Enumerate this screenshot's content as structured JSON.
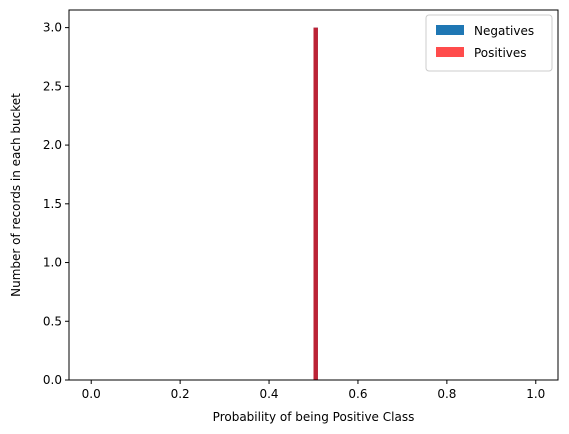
{
  "chart_data": {
    "type": "bar",
    "xlabel": "Probability of being Positive Class",
    "ylabel": "Number of records in each bucket",
    "xlim": [
      -0.05,
      1.05
    ],
    "ylim": [
      0,
      3.15
    ],
    "xticks": [
      0.0,
      0.2,
      0.4,
      0.6,
      0.8,
      1.0
    ],
    "xtick_labels": [
      "0.0",
      "0.2",
      "0.4",
      "0.6",
      "0.8",
      "1.0"
    ],
    "yticks": [
      0.0,
      0.5,
      1.0,
      1.5,
      2.0,
      2.5,
      3.0
    ],
    "ytick_labels": [
      "0.0",
      "0.5",
      "1.0",
      "1.5",
      "2.0",
      "2.5",
      "3.0"
    ],
    "grid": false,
    "legend_position": "top-right",
    "series": [
      {
        "name": "Negatives",
        "color": "#1f77b4",
        "opacity": 1.0,
        "bins": [
          {
            "x0": 0.5,
            "x1": 0.51,
            "count": 3
          }
        ]
      },
      {
        "name": "Positives",
        "color": "#ff0000",
        "opacity": 0.7,
        "bins": [
          {
            "x0": 0.5,
            "x1": 0.51,
            "count": 3
          }
        ]
      }
    ]
  }
}
